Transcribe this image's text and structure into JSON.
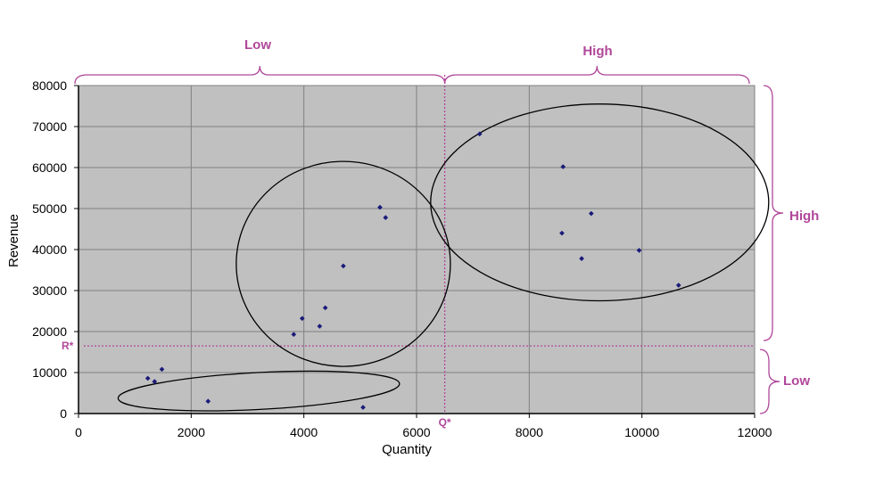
{
  "chart_data": {
    "type": "scatter",
    "xlabel": "Quantity",
    "ylabel": "Revenue",
    "xlim": [
      0,
      12000
    ],
    "ylim": [
      0,
      80000
    ],
    "xticks": [
      "0",
      "2000",
      "4000",
      "6000",
      "8000",
      "10000",
      "12000"
    ],
    "yticks": [
      "0",
      "10000",
      "20000",
      "30000",
      "40000",
      "50000",
      "60000",
      "70000",
      "80000"
    ],
    "grid": true,
    "legend": "none",
    "colors": {
      "plot_bg": "#c0c0c0",
      "grid": "#808080",
      "point": "#1a1a7a",
      "annotation": "#b0479a"
    },
    "points": [
      {
        "x": 1230,
        "y": 8600
      },
      {
        "x": 1350,
        "y": 7800
      },
      {
        "x": 1480,
        "y": 10800
      },
      {
        "x": 2300,
        "y": 3000
      },
      {
        "x": 5050,
        "y": 1500
      },
      {
        "x": 3820,
        "y": 19300
      },
      {
        "x": 3970,
        "y": 23200
      },
      {
        "x": 4280,
        "y": 21300
      },
      {
        "x": 4380,
        "y": 25800
      },
      {
        "x": 4700,
        "y": 36000
      },
      {
        "x": 5350,
        "y": 50300
      },
      {
        "x": 5450,
        "y": 47800
      },
      {
        "x": 7120,
        "y": 68200
      },
      {
        "x": 8580,
        "y": 44000
      },
      {
        "x": 8600,
        "y": 60200
      },
      {
        "x": 8930,
        "y": 37800
      },
      {
        "x": 9100,
        "y": 48800
      },
      {
        "x": 9950,
        "y": 39800
      },
      {
        "x": 10650,
        "y": 31300
      }
    ],
    "thresholds": {
      "q_star": {
        "value": 6500,
        "label": "Q*"
      },
      "r_star": {
        "value": 16500,
        "label": "R*"
      }
    },
    "region_labels": {
      "quantity_low": "Low",
      "quantity_high": "High",
      "revenue_high": "High",
      "revenue_low": "Low"
    },
    "clusters": [
      {
        "name": "low-quantity-low-revenue",
        "cx": 3200,
        "cy": 5500,
        "rx": 2500,
        "ry": 4500,
        "angle_deg": 3
      },
      {
        "name": "low-quantity-mid-revenue",
        "cx": 4700,
        "cy": 36500,
        "rx": 1900,
        "ry": 25000,
        "angle_deg": 0
      },
      {
        "name": "high-quantity-high-revenue",
        "cx": 9250,
        "cy": 51500,
        "rx": 3000,
        "ry": 24000,
        "angle_deg": 0
      }
    ]
  }
}
